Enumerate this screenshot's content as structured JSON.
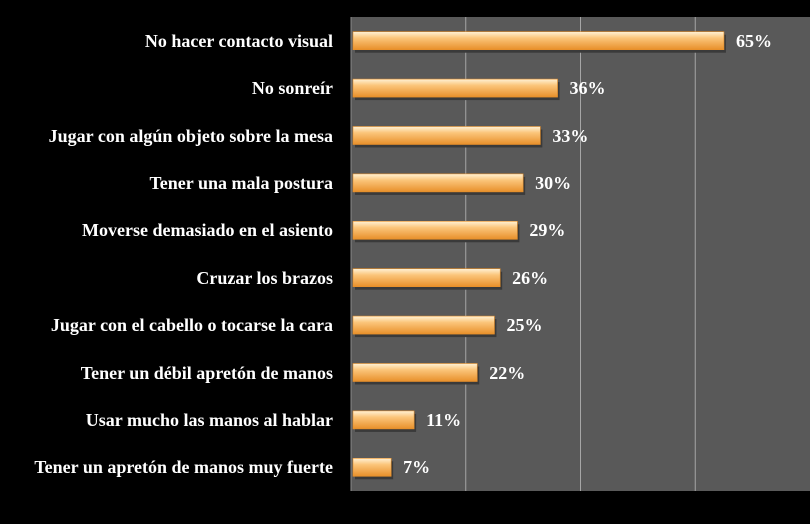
{
  "chart_data": {
    "type": "bar",
    "orientation": "horizontal",
    "categories": [
      "No hacer contacto visual",
      "No sonreír",
      "Jugar con algún objeto sobre la mesa",
      "Tener una mala postura",
      "Moverse demasiado en el asiento",
      "Cruzar los brazos",
      "Jugar con el cabello o tocarse la cara",
      "Tener un débil apretón de manos",
      "Usar mucho las manos al hablar",
      "Tener un apretón de manos muy fuerte"
    ],
    "values": [
      65,
      36,
      33,
      30,
      29,
      26,
      25,
      22,
      11,
      7
    ],
    "value_labels": [
      "65%",
      "36%",
      "33%",
      "30%",
      "29%",
      "26%",
      "25%",
      "22%",
      "11%",
      "7%"
    ],
    "xlim": [
      0,
      80
    ],
    "grid": true,
    "colors": {
      "background": "#000000",
      "plot_area": "#595959",
      "gridline": "#a6a6a6",
      "bar_light": "#fde0b0",
      "bar_mid": "#f9b55f",
      "bar_dark": "#e8902a",
      "text": "#ffffff"
    }
  }
}
